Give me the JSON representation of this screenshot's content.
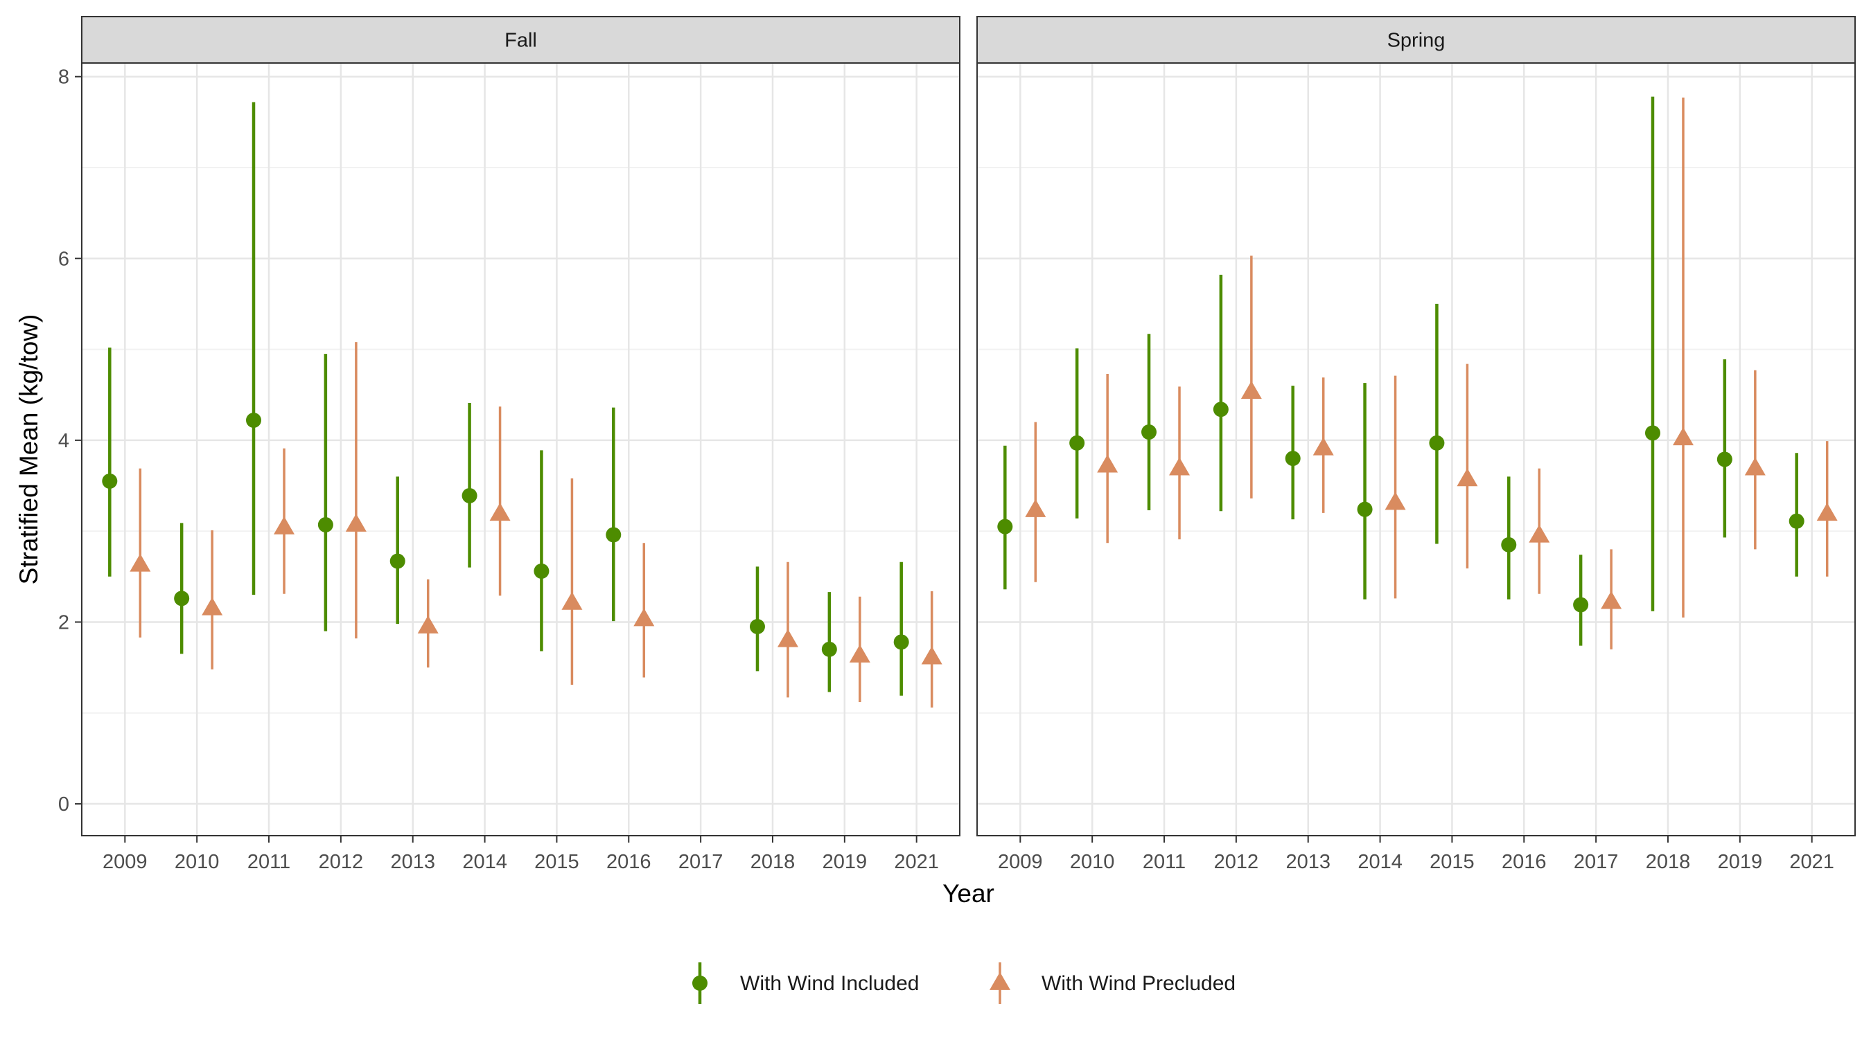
{
  "chart_data": {
    "type": "scatter",
    "subtype": "point-range-faceted",
    "xlabel": "Year",
    "ylabel": "Stratified Mean (kg/tow)",
    "ylim": [
      -0.35,
      8.15
    ],
    "yticks": [
      "0",
      "2",
      "4",
      "6",
      "8"
    ],
    "grid": true,
    "legend_position": "bottom",
    "series": [
      {
        "name": "With Wind Included",
        "color": "#4d8c00",
        "shape": "circle"
      },
      {
        "name": "With Wind Precluded",
        "color": "#d98b5f",
        "shape": "triangle"
      }
    ],
    "facets": [
      {
        "title": "Fall",
        "categories": [
          "2009",
          "2010",
          "2011",
          "2012",
          "2013",
          "2014",
          "2015",
          "2016",
          "2017",
          "2018",
          "2019",
          "2021"
        ],
        "series_values": [
          [
            {
              "x": "2009",
              "y": 3.55,
              "lo": 2.5,
              "hi": 5.02
            },
            {
              "x": "2010",
              "y": 2.26,
              "lo": 1.65,
              "hi": 3.09
            },
            {
              "x": "2011",
              "y": 4.22,
              "lo": 2.3,
              "hi": 7.72
            },
            {
              "x": "2012",
              "y": 3.07,
              "lo": 1.9,
              "hi": 4.95
            },
            {
              "x": "2013",
              "y": 2.67,
              "lo": 1.98,
              "hi": 3.6
            },
            {
              "x": "2014",
              "y": 3.39,
              "lo": 2.6,
              "hi": 4.41
            },
            {
              "x": "2015",
              "y": 2.56,
              "lo": 1.68,
              "hi": 3.89
            },
            {
              "x": "2016",
              "y": 2.96,
              "lo": 2.01,
              "hi": 4.36
            },
            {
              "x": "2018",
              "y": 1.95,
              "lo": 1.46,
              "hi": 2.61
            },
            {
              "x": "2019",
              "y": 1.7,
              "lo": 1.23,
              "hi": 2.33
            },
            {
              "x": "2021",
              "y": 1.78,
              "lo": 1.19,
              "hi": 2.66
            }
          ],
          [
            {
              "x": "2009",
              "y": 2.63,
              "lo": 1.83,
              "hi": 3.69
            },
            {
              "x": "2010",
              "y": 2.15,
              "lo": 1.48,
              "hi": 3.01
            },
            {
              "x": "2011",
              "y": 3.04,
              "lo": 2.31,
              "hi": 3.91
            },
            {
              "x": "2012",
              "y": 3.07,
              "lo": 1.82,
              "hi": 5.08
            },
            {
              "x": "2013",
              "y": 1.95,
              "lo": 1.5,
              "hi": 2.47
            },
            {
              "x": "2014",
              "y": 3.19,
              "lo": 2.29,
              "hi": 4.37
            },
            {
              "x": "2015",
              "y": 2.21,
              "lo": 1.31,
              "hi": 3.58
            },
            {
              "x": "2016",
              "y": 2.03,
              "lo": 1.39,
              "hi": 2.87
            },
            {
              "x": "2018",
              "y": 1.8,
              "lo": 1.17,
              "hi": 2.66
            },
            {
              "x": "2019",
              "y": 1.63,
              "lo": 1.12,
              "hi": 2.28
            },
            {
              "x": "2021",
              "y": 1.61,
              "lo": 1.06,
              "hi": 2.34
            }
          ]
        ]
      },
      {
        "title": "Spring",
        "categories": [
          "2009",
          "2010",
          "2011",
          "2012",
          "2013",
          "2014",
          "2015",
          "2016",
          "2017",
          "2018",
          "2019",
          "2021"
        ],
        "series_values": [
          [
            {
              "x": "2009",
              "y": 3.05,
              "lo": 2.36,
              "hi": 3.94
            },
            {
              "x": "2010",
              "y": 3.97,
              "lo": 3.14,
              "hi": 5.01
            },
            {
              "x": "2011",
              "y": 4.09,
              "lo": 3.23,
              "hi": 5.17
            },
            {
              "x": "2012",
              "y": 4.34,
              "lo": 3.22,
              "hi": 5.82
            },
            {
              "x": "2013",
              "y": 3.8,
              "lo": 3.13,
              "hi": 4.6
            },
            {
              "x": "2014",
              "y": 3.24,
              "lo": 2.25,
              "hi": 4.63
            },
            {
              "x": "2015",
              "y": 3.97,
              "lo": 2.86,
              "hi": 5.5
            },
            {
              "x": "2016",
              "y": 2.85,
              "lo": 2.25,
              "hi": 3.6
            },
            {
              "x": "2017",
              "y": 2.19,
              "lo": 1.74,
              "hi": 2.74
            },
            {
              "x": "2018",
              "y": 4.08,
              "lo": 2.12,
              "hi": 7.78
            },
            {
              "x": "2019",
              "y": 3.79,
              "lo": 2.93,
              "hi": 4.89
            },
            {
              "x": "2021",
              "y": 3.11,
              "lo": 2.5,
              "hi": 3.86
            }
          ],
          [
            {
              "x": "2009",
              "y": 3.23,
              "lo": 2.44,
              "hi": 4.2
            },
            {
              "x": "2010",
              "y": 3.72,
              "lo": 2.87,
              "hi": 4.73
            },
            {
              "x": "2011",
              "y": 3.69,
              "lo": 2.91,
              "hi": 4.59
            },
            {
              "x": "2012",
              "y": 4.53,
              "lo": 3.36,
              "hi": 6.03
            },
            {
              "x": "2013",
              "y": 3.91,
              "lo": 3.2,
              "hi": 4.69
            },
            {
              "x": "2014",
              "y": 3.31,
              "lo": 2.26,
              "hi": 4.71
            },
            {
              "x": "2015",
              "y": 3.57,
              "lo": 2.59,
              "hi": 4.84
            },
            {
              "x": "2016",
              "y": 2.95,
              "lo": 2.31,
              "hi": 3.69
            },
            {
              "x": "2017",
              "y": 2.22,
              "lo": 1.7,
              "hi": 2.8
            },
            {
              "x": "2018",
              "y": 4.02,
              "lo": 2.05,
              "hi": 7.77
            },
            {
              "x": "2019",
              "y": 3.69,
              "lo": 2.8,
              "hi": 4.77
            },
            {
              "x": "2021",
              "y": 3.19,
              "lo": 2.5,
              "hi": 3.99
            }
          ]
        ]
      }
    ]
  }
}
